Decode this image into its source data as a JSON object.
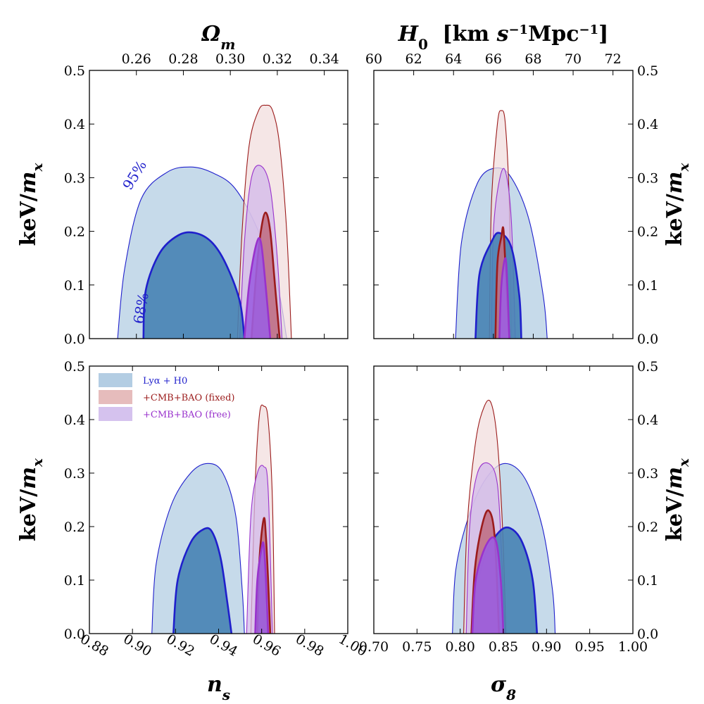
{
  "chart_data": [
    {
      "type": "area",
      "panel": "top-left",
      "x_axis_position": "top",
      "xlabel": "Ω_m",
      "ylabel": "keV/m_x",
      "xlim": [
        0.24,
        0.35
      ],
      "ylim": [
        0,
        0.5
      ],
      "xticks": [
        0.26,
        0.28,
        0.3,
        0.32,
        0.34
      ],
      "xtick_labels": [
        "0.26",
        "0.28",
        "0.30",
        "0.32",
        "0.34"
      ],
      "yticks": [
        0.0,
        0.1,
        0.2,
        0.3,
        0.4,
        0.5
      ],
      "ytick_labels": [
        "0.0",
        "0.1",
        "0.2",
        "0.3",
        "0.4",
        "0.5"
      ],
      "ytick_side": "left",
      "contour_labels": [
        {
          "text": "95%",
          "x": 0.261,
          "y": 0.3
        },
        {
          "text": "68%",
          "x": 0.264,
          "y": 0.055
        }
      ],
      "series": [
        {
          "name": "Lyα + H0",
          "level": "95%",
          "x": [
            0.252,
            0.255,
            0.262,
            0.273,
            0.283,
            0.292,
            0.302,
            0.312,
            0.32,
            0.324
          ],
          "y": [
            0.0,
            0.13,
            0.26,
            0.31,
            0.32,
            0.31,
            0.28,
            0.2,
            0.1,
            0.0
          ]
        },
        {
          "name": "Lyα + H0",
          "level": "68%",
          "x": [
            0.263,
            0.264,
            0.27,
            0.278,
            0.285,
            0.292,
            0.298,
            0.304,
            0.306
          ],
          "y": [
            0.0,
            0.09,
            0.16,
            0.193,
            0.197,
            0.18,
            0.14,
            0.07,
            0.0
          ]
        },
        {
          "name": "+CMB+BAO (fixed)",
          "level": "95%",
          "x": [
            0.303,
            0.305,
            0.308,
            0.312,
            0.315,
            0.318,
            0.321,
            0.324,
            0.326
          ],
          "y": [
            0.0,
            0.2,
            0.36,
            0.425,
            0.435,
            0.425,
            0.36,
            0.2,
            0.0
          ]
        },
        {
          "name": "+CMB+BAO (fixed)",
          "level": "68%",
          "x": [
            0.309,
            0.311,
            0.313,
            0.315,
            0.317,
            0.319,
            0.321
          ],
          "y": [
            0.0,
            0.12,
            0.2,
            0.235,
            0.2,
            0.1,
            0.0
          ]
        },
        {
          "name": "+CMB+BAO (free)",
          "level": "95%",
          "x": [
            0.304,
            0.306,
            0.309,
            0.313,
            0.317,
            0.32,
            0.322
          ],
          "y": [
            0.0,
            0.18,
            0.3,
            0.322,
            0.28,
            0.15,
            0.0
          ]
        },
        {
          "name": "+CMB+BAO (free)",
          "level": "68%",
          "x": [
            0.306,
            0.308,
            0.311,
            0.313,
            0.315,
            0.317
          ],
          "y": [
            0.0,
            0.1,
            0.175,
            0.18,
            0.1,
            0.0
          ]
        }
      ]
    },
    {
      "type": "area",
      "panel": "top-right",
      "x_axis_position": "top",
      "xlabel": "H_0 [km s^-1 Mpc^-1]",
      "ylabel": "keV/m_x",
      "xlim": [
        60,
        73
      ],
      "ylim": [
        0,
        0.5
      ],
      "xticks": [
        60,
        62,
        64,
        66,
        68,
        70,
        72
      ],
      "xtick_labels": [
        "60",
        "62",
        "64",
        "66",
        "68",
        "70",
        "72"
      ],
      "yticks": [
        0.0,
        0.1,
        0.2,
        0.3,
        0.4,
        0.5
      ],
      "ytick_labels": [
        "0.0",
        "0.1",
        "0.2",
        "0.3",
        "0.4",
        "0.5"
      ],
      "ytick_side": "right",
      "series": [
        {
          "name": "Lyα + H0",
          "level": "95%",
          "x": [
            64.1,
            64.4,
            65.2,
            66.1,
            66.9,
            67.8,
            68.5,
            68.7
          ],
          "y": [
            0.0,
            0.18,
            0.29,
            0.318,
            0.3,
            0.22,
            0.08,
            0.0
          ]
        },
        {
          "name": "Lyα + H0",
          "level": "68%",
          "x": [
            65.1,
            65.3,
            65.9,
            66.3,
            66.9,
            67.3,
            67.4
          ],
          "y": [
            0.0,
            0.12,
            0.18,
            0.197,
            0.17,
            0.08,
            0.0
          ]
        },
        {
          "name": "+CMB+BAO (fixed)",
          "level": "95%",
          "x": [
            65.8,
            65.9,
            66.2,
            66.4,
            66.6,
            66.8,
            66.9
          ],
          "y": [
            0.0,
            0.25,
            0.4,
            0.425,
            0.4,
            0.25,
            0.0
          ]
        },
        {
          "name": "+CMB+BAO (fixed)",
          "level": "68%",
          "x": [
            66.1,
            66.2,
            66.4,
            66.5,
            66.6,
            66.8
          ],
          "y": [
            0.0,
            0.14,
            0.19,
            0.205,
            0.14,
            0.0
          ]
        },
        {
          "name": "+CMB+BAO (free)",
          "level": "95%",
          "x": [
            65.9,
            66.0,
            66.3,
            66.6,
            66.9,
            67.1
          ],
          "y": [
            0.0,
            0.2,
            0.295,
            0.312,
            0.22,
            0.0
          ]
        },
        {
          "name": "+CMB+BAO (free)",
          "level": "68%",
          "x": [
            66.3,
            66.4,
            66.6,
            66.7,
            66.8
          ],
          "y": [
            0.0,
            0.1,
            0.15,
            0.1,
            0.0
          ]
        }
      ]
    },
    {
      "type": "area",
      "panel": "bottom-left",
      "x_axis_position": "bottom",
      "xlabel": "n_s",
      "ylabel": "keV/m_x",
      "xlim": [
        0.88,
        1.0
      ],
      "ylim": [
        0,
        0.5
      ],
      "xticks": [
        0.88,
        0.9,
        0.92,
        0.94,
        0.96,
        0.98,
        1.0
      ],
      "xtick_labels": [
        "0.88",
        "0.90",
        "0.92",
        "0.94",
        "0.96",
        "0.98",
        "1.00"
      ],
      "yticks": [
        0.0,
        0.1,
        0.2,
        0.3,
        0.4,
        0.5
      ],
      "ytick_labels": [
        "0.0",
        "0.1",
        "0.2",
        "0.3",
        "0.4",
        "0.5"
      ],
      "ytick_side": "left",
      "legend": {
        "placement": "upper-left",
        "entries": [
          "Lyα + H0",
          "+CMB+BAO (fixed)",
          "+CMB+BAO (free)"
        ]
      },
      "series": [
        {
          "name": "Lyα + H0",
          "level": "95%",
          "x": [
            0.909,
            0.911,
            0.918,
            0.927,
            0.935,
            0.942,
            0.948,
            0.951,
            0.952
          ],
          "y": [
            0.0,
            0.13,
            0.24,
            0.3,
            0.318,
            0.3,
            0.22,
            0.08,
            0.0
          ]
        },
        {
          "name": "Lyα + H0",
          "level": "68%",
          "x": [
            0.919,
            0.921,
            0.927,
            0.933,
            0.937,
            0.941,
            0.944,
            0.946
          ],
          "y": [
            0.0,
            0.1,
            0.17,
            0.195,
            0.19,
            0.14,
            0.06,
            0.0
          ]
        },
        {
          "name": "+CMB+BAO (fixed)",
          "level": "95%",
          "x": [
            0.955,
            0.957,
            0.959,
            0.961,
            0.963,
            0.965,
            0.966
          ],
          "y": [
            0.0,
            0.28,
            0.41,
            0.425,
            0.4,
            0.25,
            0.0
          ]
        },
        {
          "name": "+CMB+BAO (fixed)",
          "level": "68%",
          "x": [
            0.958,
            0.959,
            0.961,
            0.962,
            0.963,
            0.964
          ],
          "y": [
            0.0,
            0.14,
            0.215,
            0.18,
            0.1,
            0.0
          ]
        },
        {
          "name": "+CMB+BAO (free)",
          "level": "95%",
          "x": [
            0.953,
            0.955,
            0.958,
            0.961,
            0.963,
            0.965
          ],
          "y": [
            0.0,
            0.22,
            0.3,
            0.312,
            0.27,
            0.0
          ]
        },
        {
          "name": "+CMB+BAO (free)",
          "level": "68%",
          "x": [
            0.957,
            0.958,
            0.96,
            0.961,
            0.962,
            0.963
          ],
          "y": [
            0.0,
            0.1,
            0.16,
            0.165,
            0.1,
            0.0
          ]
        }
      ]
    },
    {
      "type": "area",
      "panel": "bottom-right",
      "x_axis_position": "bottom",
      "xlabel": "σ_8",
      "ylabel": "keV/m_x",
      "xlim": [
        0.7,
        1.0
      ],
      "ylim": [
        0,
        0.5
      ],
      "xticks": [
        0.7,
        0.75,
        0.8,
        0.85,
        0.9,
        0.95,
        1.0
      ],
      "xtick_labels": [
        "0.70",
        "0.75",
        "0.80",
        "0.85",
        "0.90",
        "0.95",
        "1.00"
      ],
      "yticks": [
        0.0,
        0.1,
        0.2,
        0.3,
        0.4,
        0.5
      ],
      "ytick_labels": [
        "0.0",
        "0.1",
        "0.2",
        "0.3",
        "0.4",
        "0.5"
      ],
      "ytick_side": "right",
      "series": [
        {
          "name": "Lyα + H0",
          "level": "95%",
          "x": [
            0.791,
            0.795,
            0.81,
            0.83,
            0.852,
            0.875,
            0.895,
            0.907,
            0.91
          ],
          "y": [
            0.0,
            0.12,
            0.22,
            0.29,
            0.318,
            0.29,
            0.2,
            0.08,
            0.0
          ]
        },
        {
          "name": "Lyα + H0",
          "level": "68%",
          "x": [
            0.815,
            0.818,
            0.83,
            0.845,
            0.858,
            0.872,
            0.884,
            0.889
          ],
          "y": [
            0.0,
            0.08,
            0.15,
            0.19,
            0.197,
            0.17,
            0.1,
            0.0
          ]
        },
        {
          "name": "+CMB+BAO (fixed)",
          "level": "95%",
          "x": [
            0.804,
            0.808,
            0.818,
            0.828,
            0.836,
            0.843,
            0.849,
            0.853
          ],
          "y": [
            0.0,
            0.2,
            0.36,
            0.425,
            0.43,
            0.36,
            0.2,
            0.0
          ]
        },
        {
          "name": "+CMB+BAO (fixed)",
          "level": "68%",
          "x": [
            0.813,
            0.817,
            0.825,
            0.833,
            0.84,
            0.845
          ],
          "y": [
            0.0,
            0.12,
            0.2,
            0.23,
            0.18,
            0.0
          ]
        },
        {
          "name": "+CMB+BAO (free)",
          "level": "95%",
          "x": [
            0.807,
            0.811,
            0.82,
            0.833,
            0.843,
            0.848,
            0.852
          ],
          "y": [
            0.0,
            0.2,
            0.3,
            0.318,
            0.28,
            0.15,
            0.0
          ]
        },
        {
          "name": "+CMB+BAO (free)",
          "level": "68%",
          "x": [
            0.814,
            0.818,
            0.83,
            0.841,
            0.847,
            0.85
          ],
          "y": [
            0.0,
            0.1,
            0.165,
            0.175,
            0.1,
            0.0
          ]
        }
      ]
    }
  ],
  "legend": {
    "entries": [
      {
        "label": "Lyα + H0",
        "label_html": "Ly<i>α</i> + <i>H</i><tspan baseline-shift='sub' font-size='9'>0</tspan>",
        "fill": "#b3cde3",
        "text_color": "#2222cc"
      },
      {
        "label": "+CMB+BAO (fixed)",
        "fill": "#e6bcbc",
        "text_color": "#9b1b1b"
      },
      {
        "label": "+CMB+BAO (free)",
        "fill": "#d5c2ee",
        "text_color": "#9932cc"
      }
    ]
  },
  "styles": {
    "Lyα + H0": {
      "fill95": "#b3cde3",
      "fill68": "#4682b4",
      "stroke": "#1f1fcc"
    },
    "+CMB+BAO (fixed)": {
      "fill95": "#f1dddd",
      "fill68": "#c07085",
      "stroke": "#9b1b1b"
    },
    "+CMB+BAO (free)": {
      "fill95": "#d2b8ea",
      "fill68": "#9c5fe0",
      "stroke": "#9932cc"
    }
  }
}
